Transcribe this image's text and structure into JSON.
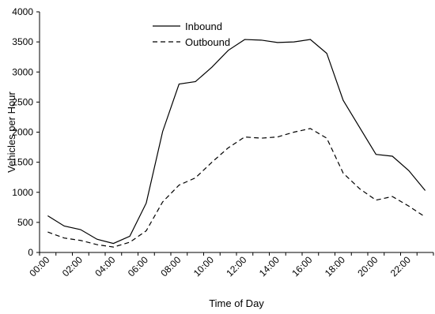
{
  "chart_data": {
    "type": "line",
    "title": "",
    "xlabel": "Time of Day",
    "ylabel": "Vehicles per Hour",
    "ylim": [
      0,
      4000
    ],
    "yticks": [
      0,
      500,
      1000,
      1500,
      2000,
      2500,
      3000,
      3500,
      4000
    ],
    "x": [
      "00:00",
      "01:00",
      "02:00",
      "03:00",
      "04:00",
      "05:00",
      "06:00",
      "07:00",
      "08:00",
      "09:00",
      "10:00",
      "11:00",
      "12:00",
      "13:00",
      "14:00",
      "15:00",
      "16:00",
      "17:00",
      "18:00",
      "19:00",
      "20:00",
      "21:00",
      "22:00",
      "23:00"
    ],
    "xtick_labels": [
      "00:00",
      "02:00",
      "04:00",
      "06:00",
      "08:00",
      "10:00",
      "12:00",
      "14:00",
      "16:00",
      "18:00",
      "20:00",
      "22:00"
    ],
    "grid": false,
    "legend_position": "top-center",
    "series": [
      {
        "name": "Inbound",
        "dash": "solid",
        "values": [
          610,
          440,
          380,
          220,
          150,
          270,
          820,
          2010,
          2800,
          2840,
          3080,
          3360,
          3540,
          3530,
          3490,
          3500,
          3540,
          3310,
          2530,
          2080,
          1630,
          1600,
          1360,
          1030
        ]
      },
      {
        "name": "Outbound",
        "dash": "dashed",
        "values": [
          340,
          240,
          200,
          130,
          90,
          170,
          360,
          840,
          1120,
          1240,
          1500,
          1740,
          1920,
          1900,
          1920,
          2000,
          2060,
          1900,
          1320,
          1060,
          870,
          930,
          770,
          590
        ]
      }
    ]
  }
}
